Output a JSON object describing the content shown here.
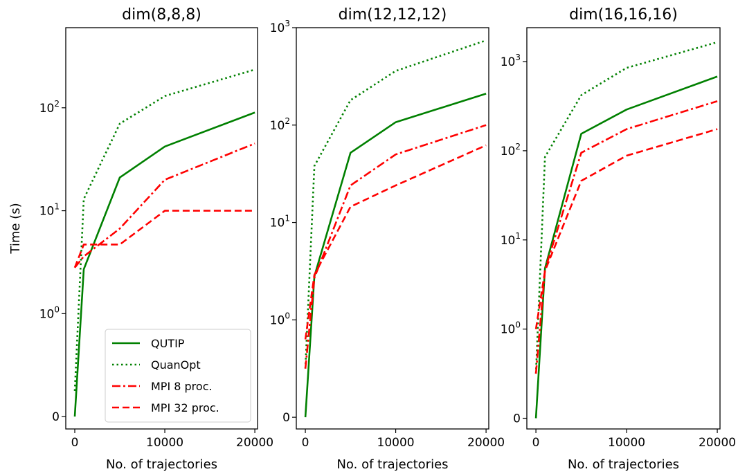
{
  "chart_data": [
    {
      "type": "line",
      "title": "dim(8,8,8)",
      "xlabel": "No. of trajectories",
      "ylabel": "Time (s)",
      "yscale": "symlog",
      "xlim": [
        -1000,
        20300
      ],
      "ylim": [
        -0.12,
        600
      ],
      "xticks": [
        0,
        10000,
        20000
      ],
      "xtick_labels": [
        "0",
        "10000",
        "20000"
      ],
      "yticks": [
        0,
        1,
        10,
        100
      ],
      "ytick_labels": [
        "0",
        "10^0",
        "10^1",
        "10^2"
      ],
      "legend": "lower-right",
      "x": [
        0,
        1000,
        5000,
        10000,
        20000
      ],
      "series": [
        {
          "name": "QUTIP",
          "style": "solid",
          "color": "#008000",
          "values": [
            0,
            2.7,
            21,
            42,
            90
          ]
        },
        {
          "name": "QuanOpt",
          "style": "dotted",
          "color": "#008000",
          "values": [
            0.25,
            13,
            70,
            130,
            235
          ]
        },
        {
          "name": "MPI 8 proc.",
          "style": "dashdot",
          "color": "#ff0000",
          "values": [
            2.8,
            3.6,
            6.7,
            20,
            45
          ]
        },
        {
          "name": "MPI 32 proc.",
          "style": "dashed",
          "color": "#ff0000",
          "values": [
            2.8,
            4.7,
            4.7,
            10,
            10
          ]
        }
      ]
    },
    {
      "type": "line",
      "title": "dim(12,12,12)",
      "xlabel": "No. of trajectories",
      "ylabel": "",
      "yscale": "symlog",
      "xlim": [
        -1000,
        20300
      ],
      "ylim": [
        -0.12,
        1000
      ],
      "xticks": [
        0,
        10000,
        20000
      ],
      "xtick_labels": [
        "0",
        "10000",
        "20000"
      ],
      "yticks": [
        0,
        1,
        10,
        100,
        1000
      ],
      "ytick_labels": [
        "0",
        "10^0",
        "10^1",
        "10^2",
        "10^3"
      ],
      "legend": "",
      "x": [
        0,
        1000,
        5000,
        10000,
        20000
      ],
      "series": [
        {
          "name": "QUTIP",
          "style": "solid",
          "color": "#008000",
          "values": [
            0,
            2.8,
            52,
            107,
            210
          ]
        },
        {
          "name": "QuanOpt",
          "style": "dotted",
          "color": "#008000",
          "values": [
            0.5,
            38,
            180,
            360,
            740
          ]
        },
        {
          "name": "MPI 8 proc.",
          "style": "dashdot",
          "color": "#ff0000",
          "values": [
            0.5,
            2.7,
            24,
            50,
            100
          ]
        },
        {
          "name": "MPI 32 proc.",
          "style": "dashed",
          "color": "#ff0000",
          "values": [
            0.8,
            2.9,
            14.5,
            24,
            62
          ]
        }
      ]
    },
    {
      "type": "line",
      "title": "dim(16,16,16)",
      "xlabel": "No. of trajectories",
      "ylabel": "",
      "yscale": "symlog",
      "xlim": [
        -1000,
        20300
      ],
      "ylim": [
        -0.12,
        2400
      ],
      "xticks": [
        0,
        10000,
        20000
      ],
      "xtick_labels": [
        "0",
        "10000",
        "20000"
      ],
      "yticks": [
        0,
        1,
        10,
        1000
      ],
      "ytick_labels": [
        "0",
        "10^0",
        "10^1",
        "10^3"
      ],
      "ytick_extra": [
        {
          "value": 100,
          "label": "10^2"
        }
      ],
      "legend": "",
      "x": [
        0,
        1000,
        5000,
        10000,
        20000
      ],
      "series": [
        {
          "name": "QUTIP",
          "style": "solid",
          "color": "#008000",
          "values": [
            0,
            4.8,
            155,
            290,
            680
          ]
        },
        {
          "name": "QuanOpt",
          "style": "dotted",
          "color": "#008000",
          "values": [
            0.5,
            85,
            420,
            850,
            1650
          ]
        },
        {
          "name": "MPI 8 proc.",
          "style": "dashdot",
          "color": "#ff0000",
          "values": [
            0.5,
            4.6,
            95,
            175,
            360
          ]
        },
        {
          "name": "MPI 32 proc.",
          "style": "dashed",
          "color": "#ff0000",
          "values": [
            1.0,
            4.5,
            46,
            88,
            175
          ]
        }
      ]
    }
  ]
}
